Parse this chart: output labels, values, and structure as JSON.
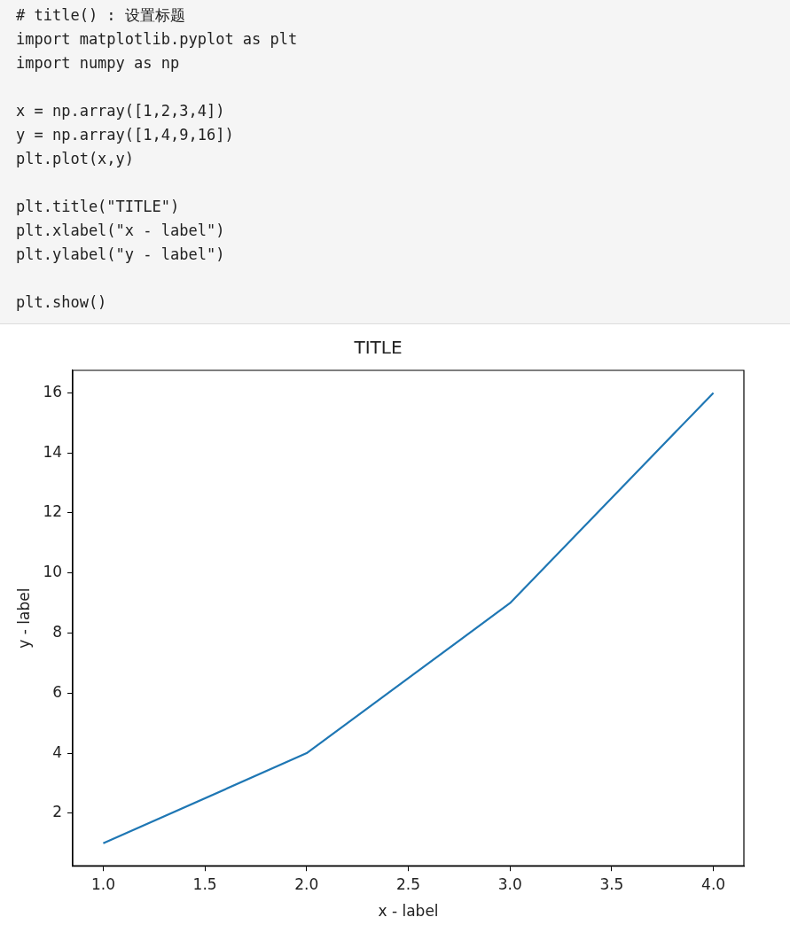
{
  "chart_data": {
    "type": "line",
    "title": "TITLE",
    "xlabel": "x - label",
    "ylabel": "y - label",
    "x": [
      1,
      2,
      3,
      4
    ],
    "series": [
      {
        "color": "#1f77b4",
        "values": [
          1,
          4,
          9,
          16
        ]
      }
    ],
    "xlim": [
      0.85,
      4.15
    ],
    "xticks": [
      {
        "value": 1,
        "label": "1.0"
      },
      {
        "value": 1.5,
        "label": "1.5"
      },
      {
        "value": 2,
        "label": "2.0"
      },
      {
        "value": 2.5,
        "label": "2.5"
      },
      {
        "value": 3,
        "label": "3.0"
      },
      {
        "value": 3.5,
        "label": "3.5"
      },
      {
        "value": 4,
        "label": "4.0"
      }
    ],
    "ylim": [
      0.25,
      16.75
    ],
    "yticks": [
      2,
      4,
      6,
      8,
      10,
      12,
      14,
      16
    ],
    "grid": false,
    "legend": false,
    "marker": "none",
    "line_style": "solid",
    "annotations": [
      "# title() : 设置标题\nimport matplotlib.pyplot as plt\nimport numpy as np",
      "x = np.array([1,2,3,4])\ny = np.array([1,4,9,16])\nplt.plot(x,y)",
      "plt.title(\"TITLE\")\nplt.xlabel(\"x - label\")\nplt.ylabel(\"y - label\")",
      "plt.show()"
    ]
  }
}
